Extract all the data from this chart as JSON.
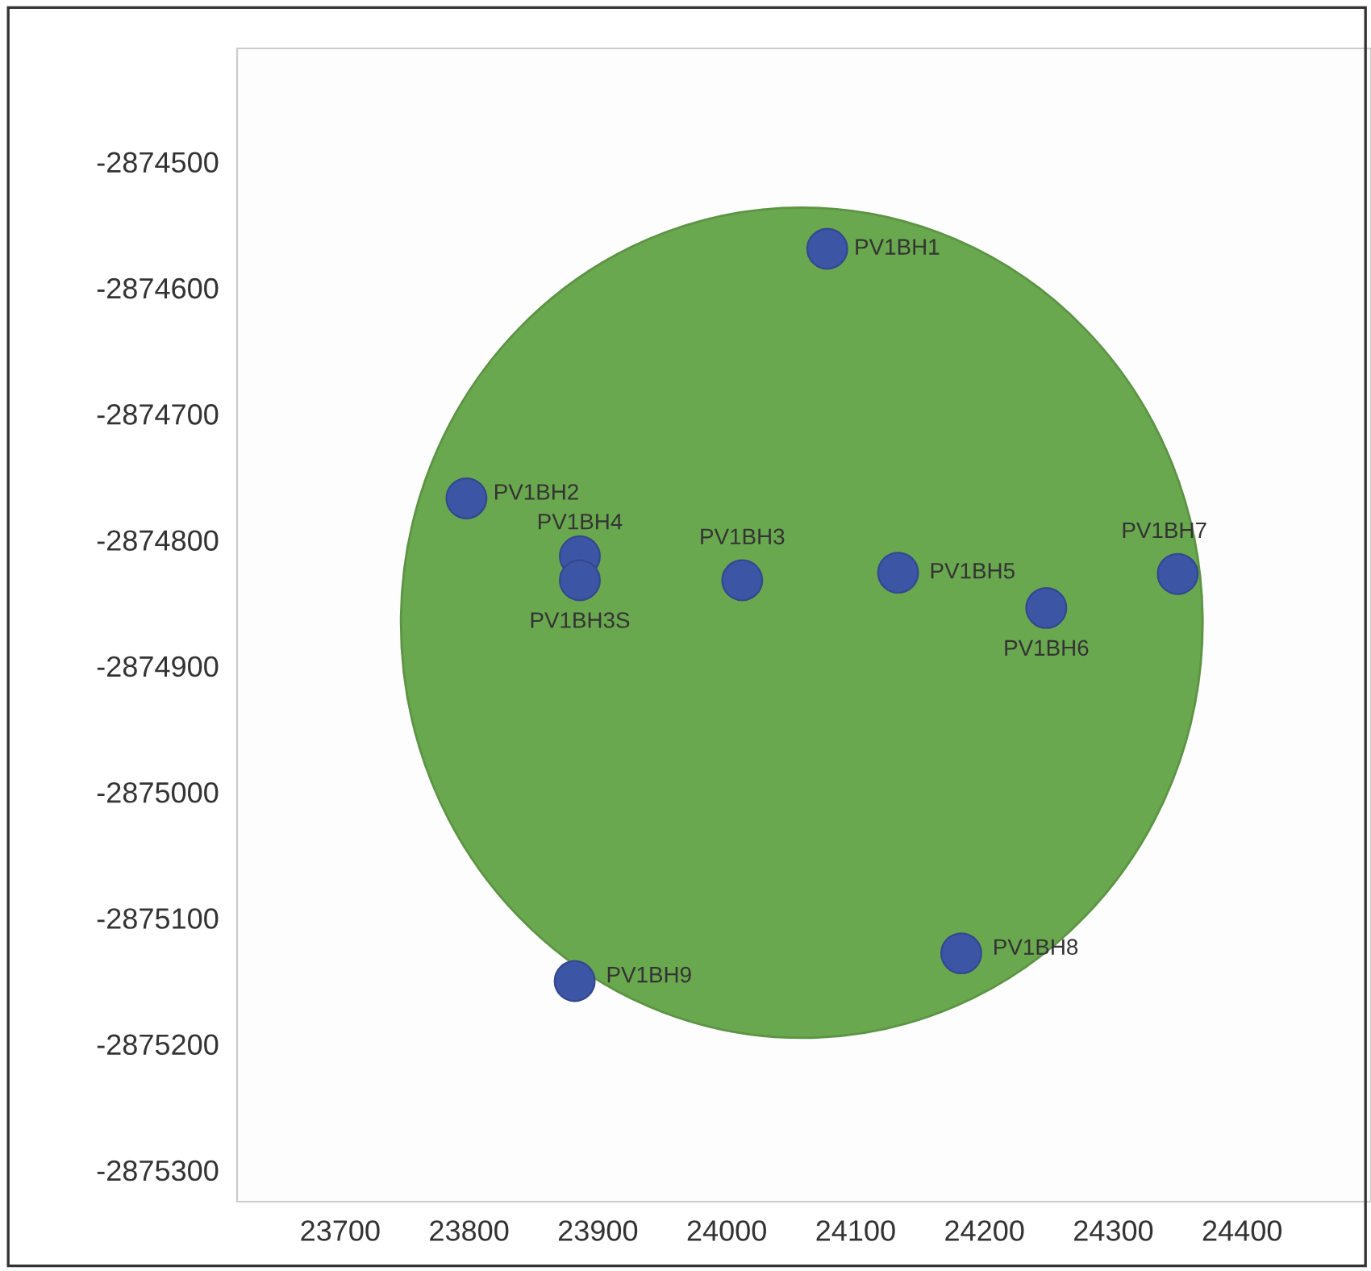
{
  "chart_data": {
    "type": "scatter",
    "marker": "circle",
    "grid": false,
    "legend": false,
    "x": [
      24078,
      23798,
      23886,
      24012,
      23886,
      24133,
      24248,
      24350,
      24182,
      23882
    ],
    "values": [
      -2874569,
      -2874767,
      -2874813,
      -2874832,
      -2874832,
      -2874826,
      -2874854,
      -2874827,
      -2875128,
      -2875150
    ],
    "color": "#3c55a5",
    "xlim": [
      23620,
      24500
    ],
    "ylim": [
      -2875325,
      -2874410
    ],
    "xticks": [
      23700,
      23800,
      23900,
      24000,
      24100,
      24200,
      24300,
      24400
    ],
    "yticks": [
      -2874500,
      -2874600,
      -2874700,
      -2874800,
      -2874900,
      -2875000,
      -2875100,
      -2875200,
      -2875300
    ],
    "annotations": [
      {
        "text": "PV1BH1",
        "x": 24078,
        "y": -2874569
      },
      {
        "text": "PV1BH2",
        "x": 23798,
        "y": -2874767
      },
      {
        "text": "PV1BH4",
        "x": 23886,
        "y": -2874813
      },
      {
        "text": "PV1BH3",
        "x": 24012,
        "y": -2874832
      },
      {
        "text": "PV1BH3S",
        "x": 23886,
        "y": -2874832
      },
      {
        "text": "PV1BH5",
        "x": 24133,
        "y": -2874826
      },
      {
        "text": "PV1BH6",
        "x": 24248,
        "y": -2874854
      },
      {
        "text": "PV1BH7",
        "x": 24350,
        "y": -2874827
      },
      {
        "text": "PV1BH8",
        "x": 24182,
        "y": -2875128
      },
      {
        "text": "PV1BH9",
        "x": 23882,
        "y": -2875150
      }
    ]
  }
}
